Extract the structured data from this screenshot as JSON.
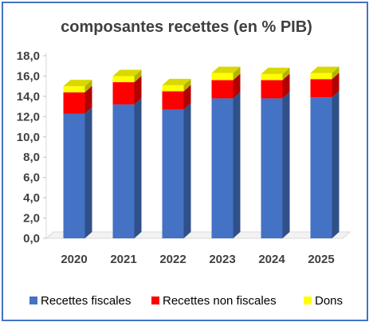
{
  "chart_data": {
    "type": "bar",
    "stacked": true,
    "three_d": true,
    "title": "composantes recettes (en % PIB)",
    "categories": [
      "2020",
      "2021",
      "2022",
      "2023",
      "2024",
      "2025"
    ],
    "series": [
      {
        "name": "Recettes fiscales",
        "color": "#4472c4",
        "values": [
          12.3,
          13.2,
          12.7,
          13.8,
          13.8,
          13.9
        ]
      },
      {
        "name": "Recettes non fiscales",
        "color": "#ff0000",
        "values": [
          2.1,
          2.2,
          1.8,
          1.8,
          1.8,
          1.8
        ]
      },
      {
        "name": "Dons",
        "color": "#ffff00",
        "values": [
          0.6,
          0.6,
          0.6,
          0.7,
          0.6,
          0.6
        ]
      }
    ],
    "y_ticks": [
      "0,0",
      "2,0",
      "4,0",
      "6,0",
      "8,0",
      "10,0",
      "12,0",
      "14,0",
      "16,0",
      "18,0"
    ],
    "ylim": [
      0,
      18
    ],
    "grid": false,
    "legend_position": "bottom"
  }
}
